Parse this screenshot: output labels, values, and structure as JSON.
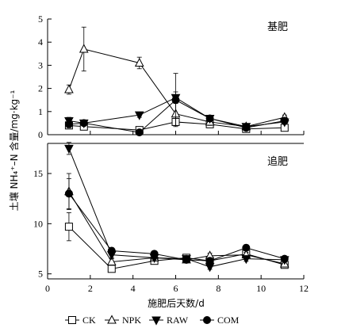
{
  "chart_data": {
    "type": "line",
    "xlabel": "施肥后天数/d",
    "ylabel": "土壤 NH₄⁺–N 含量/mg·kg⁻¹",
    "xlim": [
      0,
      12
    ],
    "x_ticks": [
      "0",
      "2",
      "4",
      "6",
      "8",
      "10",
      "12"
    ],
    "legend_position": "bottom",
    "legend": [
      {
        "name": "CK",
        "marker": "square-open"
      },
      {
        "name": "NPK",
        "marker": "triangle-up-open"
      },
      {
        "name": "RAW",
        "marker": "triangle-down-filled"
      },
      {
        "name": "COM",
        "marker": "circle-filled"
      }
    ],
    "panels": [
      {
        "label": "基肥",
        "ylim": [
          0,
          5
        ],
        "y_ticks": [
          "0",
          "1",
          "2",
          "3",
          "4",
          "5"
        ],
        "x": [
          1,
          1.7,
          4.3,
          6,
          7.6,
          9.3,
          11.1
        ],
        "series": [
          {
            "name": "CK",
            "values": [
              0.4,
              0.35,
              0.2,
              0.55,
              0.45,
              0.25,
              0.3
            ],
            "errors": [
              0.15,
              0.1,
              0.05,
              0.15,
              0.1,
              0.05,
              0.1
            ]
          },
          {
            "name": "NPK",
            "values": [
              1.95,
              3.7,
              3.1,
              0.9,
              0.55,
              0.35,
              0.75
            ],
            "errors": [
              0.2,
              0.95,
              0.25,
              0.5,
              0.15,
              0.1,
              0.1
            ]
          },
          {
            "name": "RAW",
            "values": [
              0.6,
              0.5,
              0.85,
              1.6,
              0.7,
              0.35,
              0.55
            ],
            "errors": [
              0.15,
              0.1,
              0.1,
              0.25,
              0.1,
              0.05,
              0.1
            ]
          },
          {
            "name": "COM",
            "values": [
              0.45,
              0.5,
              0.1,
              1.5,
              0.7,
              0.3,
              0.6
            ],
            "errors": [
              0.15,
              0.1,
              0.05,
              1.15,
              0.1,
              0.05,
              0.1
            ]
          }
        ]
      },
      {
        "label": "追肥",
        "ylim": [
          4.5,
          18
        ],
        "y_ticks": [
          "5",
          "10",
          "15"
        ],
        "x": [
          1,
          3,
          5,
          6.5,
          7.6,
          9.3,
          11.1
        ],
        "series": [
          {
            "name": "CK",
            "values": [
              9.7,
              5.5,
              6.3,
              6.6,
              6.3,
              7.0,
              5.9
            ],
            "errors": [
              1.4,
              0.25,
              0.2,
              0.2,
              0.2,
              0.2,
              0.2
            ]
          },
          {
            "name": "NPK",
            "values": [
              13.2,
              6.2,
              6.6,
              6.4,
              6.8,
              6.9,
              6.0
            ],
            "errors": [
              1.8,
              0.3,
              0.2,
              0.2,
              0.25,
              0.25,
              0.2
            ]
          },
          {
            "name": "RAW",
            "values": [
              17.5,
              6.9,
              6.6,
              6.5,
              5.7,
              6.5,
              6.4
            ],
            "errors": [
              0.6,
              0.3,
              0.2,
              0.2,
              0.25,
              0.25,
              0.2
            ]
          },
          {
            "name": "COM",
            "values": [
              13.0,
              7.3,
              7.0,
              6.4,
              6.3,
              7.6,
              6.5
            ],
            "errors": [
              1.5,
              0.3,
              0.2,
              0.2,
              0.2,
              0.3,
              0.2
            ]
          }
        ]
      }
    ]
  }
}
